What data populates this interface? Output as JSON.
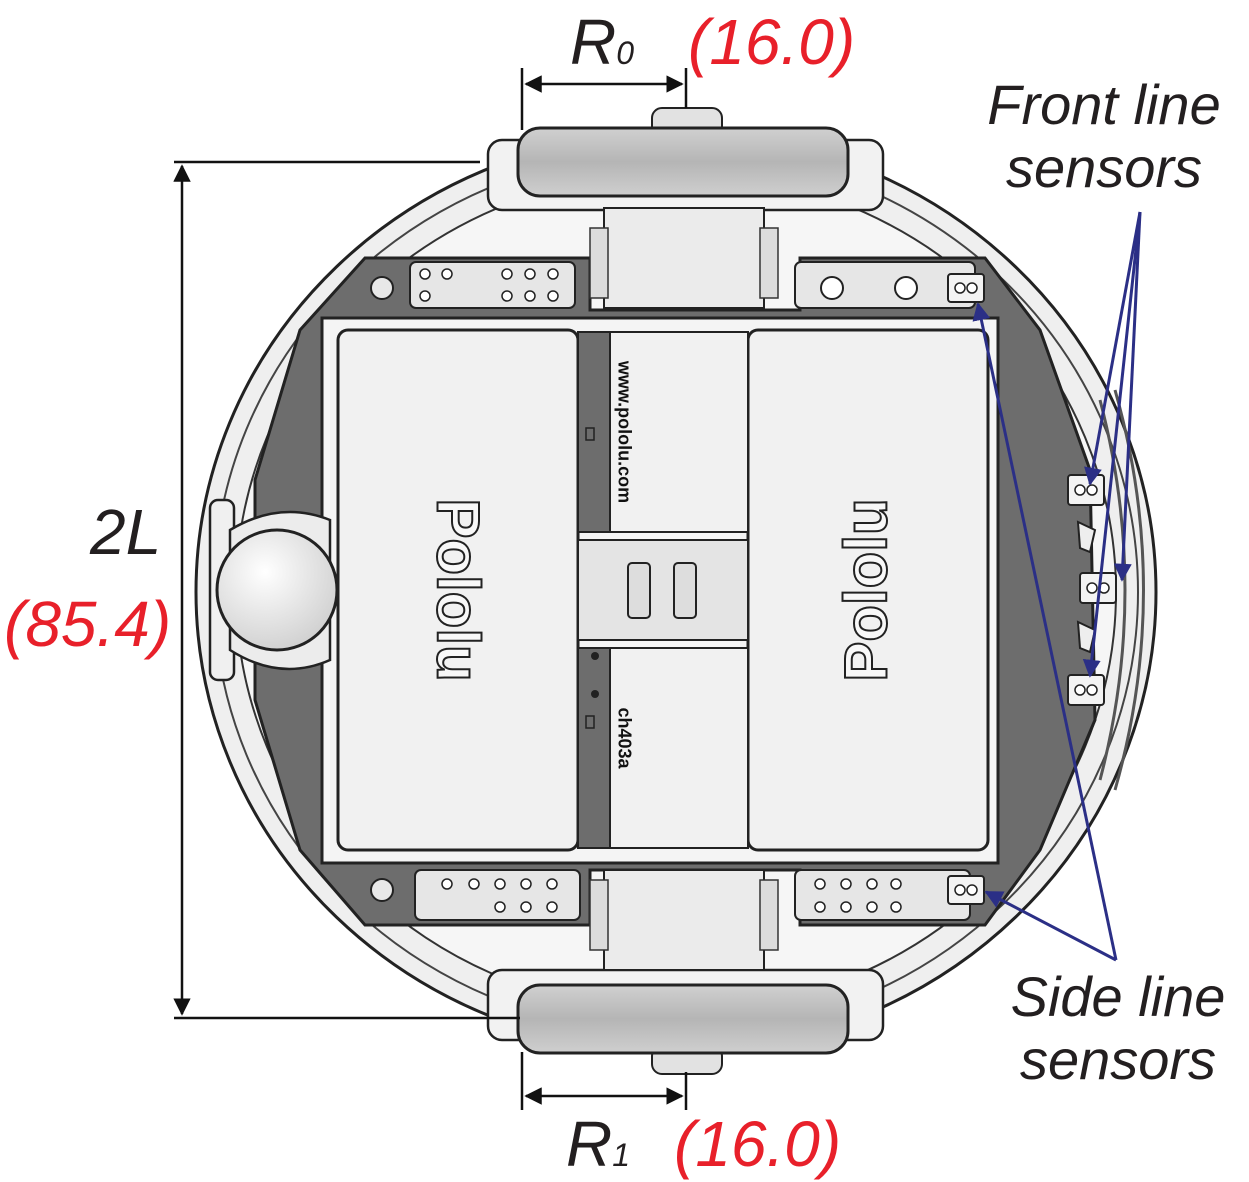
{
  "dimensions": {
    "R0": {
      "symbol": "R",
      "subscript": "0",
      "value": "(16.0)"
    },
    "R1": {
      "symbol": "R",
      "subscript": "1",
      "value": "(16.0)"
    },
    "L": {
      "symbol": "2L",
      "value": "(85.4)"
    }
  },
  "callouts": {
    "front": {
      "line1": "Front line",
      "line2": "sensors"
    },
    "side": {
      "line1": "Side line",
      "line2": "sensors"
    }
  },
  "board": {
    "logo_left": "Pololu",
    "logo_right": "Pololu",
    "url_text": "www.pololu.com",
    "code_text": "ch403a"
  },
  "colors": {
    "dimension_value": "#e8202a",
    "arrow": "#2b2f86",
    "chassis": "#ececec",
    "pcb": "#6b6b6b",
    "wheel": "#b8b8b8"
  }
}
